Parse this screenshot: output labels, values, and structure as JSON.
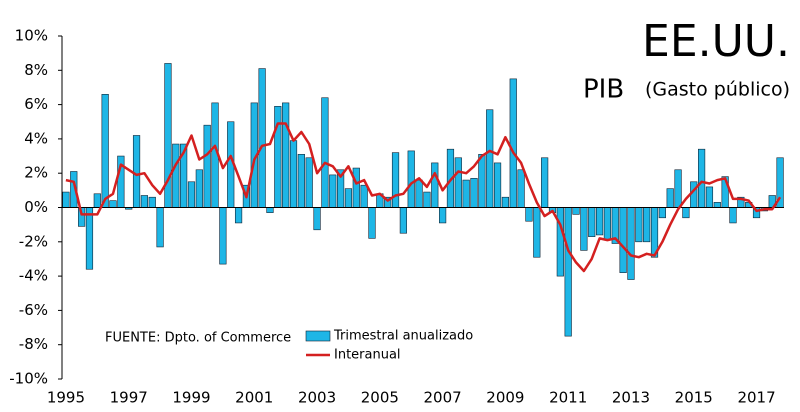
{
  "chart_data": {
    "type": "bar",
    "title": "EE.UU.",
    "subtitle": "PIB",
    "subtitle_note": "(Gasto público)",
    "annotation": "FUENTE: Dpto. of Commerce",
    "categories": [
      "1995",
      null,
      null,
      null,
      null,
      null,
      null,
      null,
      "1997",
      null,
      null,
      null,
      null,
      null,
      null,
      null,
      "1999",
      null,
      null,
      null,
      null,
      null,
      null,
      null,
      "2001",
      null,
      null,
      null,
      null,
      null,
      null,
      null,
      "2003",
      null,
      null,
      null,
      null,
      null,
      null,
      null,
      "2005",
      null,
      null,
      null,
      null,
      null,
      null,
      null,
      "2007",
      null,
      null,
      null,
      null,
      null,
      null,
      null,
      "2009",
      null,
      null,
      null,
      null,
      null,
      null,
      null,
      "2011",
      null,
      null,
      null,
      null,
      null,
      null,
      null,
      "2013",
      null,
      null,
      null,
      null,
      null,
      null,
      null,
      "2015",
      null,
      null,
      null,
      null,
      null,
      null,
      null,
      "2017",
      null,
      null,
      null
    ],
    "series": [
      {
        "name": "Trimestral anualizado",
        "type": "bar",
        "color": "#1eb6e6",
        "values": [
          0.9,
          2.1,
          -1.1,
          -3.6,
          0.8,
          6.6,
          0.4,
          3.0,
          -0.1,
          4.2,
          0.7,
          0.6,
          -2.3,
          8.4,
          3.7,
          3.7,
          1.5,
          2.2,
          4.8,
          6.1,
          -3.3,
          5.0,
          -0.9,
          1.3,
          6.1,
          8.1,
          -0.3,
          5.9,
          6.1,
          3.9,
          3.1,
          2.9,
          -1.3,
          6.4,
          1.9,
          2.2,
          1.1,
          2.3,
          1.3,
          -1.8,
          0.8,
          0.6,
          3.2,
          -1.5,
          3.3,
          1.6,
          0.9,
          2.6,
          -0.9,
          3.4,
          2.9,
          1.6,
          1.7,
          3.1,
          5.7,
          2.6,
          0.6,
          7.5,
          2.2,
          -0.8,
          -2.9,
          2.9,
          -0.3,
          -4.0,
          -7.5,
          -0.4,
          -2.5,
          -1.7,
          -1.6,
          -1.9,
          -2.1,
          -3.8,
          -4.2,
          -2.0,
          -2.0,
          -2.9,
          -0.6,
          1.1,
          2.2,
          -0.6,
          1.5,
          3.4,
          1.2,
          0.3,
          1.8,
          -0.9,
          0.6,
          0.3,
          -0.6,
          -0.2,
          0.7,
          2.9
        ]
      },
      {
        "name": "Interanual",
        "type": "line",
        "color": "#d42020",
        "values": [
          1.6,
          1.5,
          -0.4,
          -0.4,
          -0.4,
          0.5,
          0.8,
          2.5,
          2.2,
          1.9,
          2.0,
          1.3,
          0.8,
          1.6,
          2.5,
          3.2,
          4.2,
          2.8,
          3.1,
          3.6,
          2.3,
          3.0,
          1.8,
          0.6,
          2.8,
          3.6,
          3.7,
          4.9,
          4.9,
          3.9,
          4.4,
          3.7,
          2.0,
          2.6,
          2.4,
          1.8,
          2.4,
          1.4,
          1.6,
          0.7,
          0.8,
          0.4,
          0.7,
          0.8,
          1.4,
          1.7,
          1.2,
          2.0,
          1.0,
          1.6,
          2.1,
          2.0,
          2.4,
          3.0,
          3.3,
          3.1,
          4.1,
          3.2,
          2.6,
          1.4,
          0.3,
          -0.5,
          -0.2,
          -1.0,
          -2.5,
          -3.2,
          -3.7,
          -3.0,
          -1.8,
          -1.9,
          -1.8,
          -2.3,
          -2.8,
          -2.9,
          -2.7,
          -2.8,
          -2.0,
          -1.0,
          -0.1,
          0.5,
          1.0,
          1.5,
          1.4,
          1.6,
          1.7,
          0.5,
          0.5,
          0.4,
          -0.2,
          -0.1,
          -0.1,
          0.6
        ]
      }
    ],
    "ylim": [
      -10,
      10
    ],
    "yticks": [
      {
        "value": -10,
        "label": "-10%"
      },
      {
        "value": -8,
        "label": "-8%"
      },
      {
        "value": -6,
        "label": "-6%"
      },
      {
        "value": -4,
        "label": "-4%"
      },
      {
        "value": -2,
        "label": "-2%"
      },
      {
        "value": 0,
        "label": "0%"
      },
      {
        "value": 2,
        "label": "2%"
      },
      {
        "value": 4,
        "label": "4%"
      },
      {
        "value": 6,
        "label": "6%"
      },
      {
        "value": 8,
        "label": "8%"
      },
      {
        "value": 10,
        "label": "10%"
      }
    ],
    "grid": false
  }
}
